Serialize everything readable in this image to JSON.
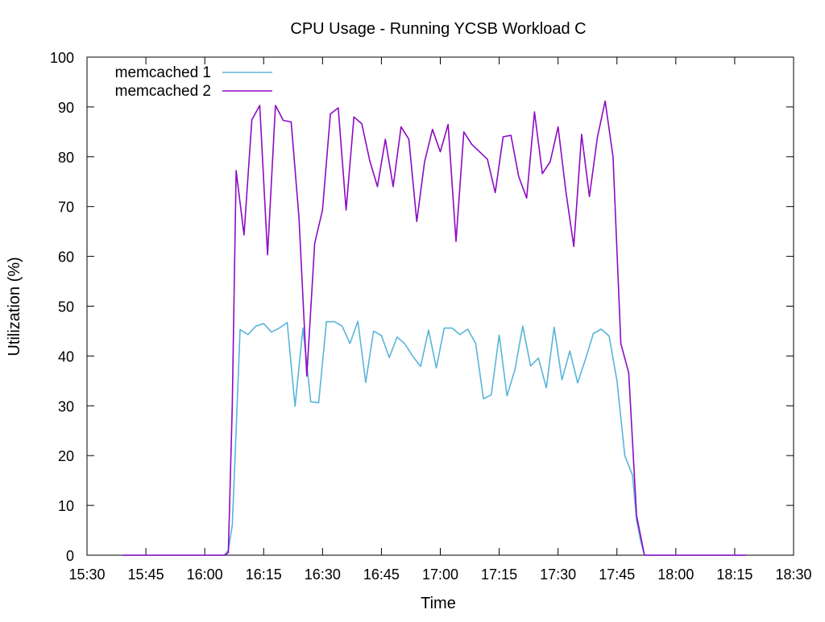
{
  "chart_data": {
    "type": "line",
    "title": "CPU Usage - Running YCSB Workload C",
    "xlabel": "Time",
    "ylabel": "Utilization (%)",
    "xlim": [
      "15:30",
      "18:30"
    ],
    "ylim": [
      0,
      100
    ],
    "x_ticks": [
      "15:30",
      "15:45",
      "16:00",
      "16:15",
      "16:30",
      "16:45",
      "17:00",
      "17:15",
      "17:30",
      "17:45",
      "18:00",
      "18:15",
      "18:30"
    ],
    "y_ticks": [
      0,
      10,
      20,
      30,
      40,
      50,
      60,
      70,
      80,
      90,
      100
    ],
    "grid": false,
    "legend_position": "top-left",
    "series": [
      {
        "name": "memcached 1",
        "color": "#5ab4d9",
        "points": [
          [
            "15:39",
            0
          ],
          [
            "15:45",
            0
          ],
          [
            "15:51",
            0
          ],
          [
            "15:57",
            0
          ],
          [
            "16:03",
            0
          ],
          [
            "16:05",
            0
          ],
          [
            "16:06",
            1
          ],
          [
            "16:07",
            6
          ],
          [
            "16:08",
            25
          ],
          [
            "16:09",
            45.3
          ],
          [
            "16:11",
            44.3
          ],
          [
            "16:13",
            46
          ],
          [
            "16:15",
            46.5
          ],
          [
            "16:17",
            44.8
          ],
          [
            "16:19",
            45.6
          ],
          [
            "16:21",
            46.7
          ],
          [
            "16:23",
            29.9
          ],
          [
            "16:25",
            45.6
          ],
          [
            "16:27",
            30.8
          ],
          [
            "16:29",
            30.6
          ],
          [
            "16:31",
            46.9
          ],
          [
            "16:33",
            46.9
          ],
          [
            "16:35",
            46
          ],
          [
            "16:37",
            42.5
          ],
          [
            "16:39",
            47
          ],
          [
            "16:41",
            34.7
          ],
          [
            "16:43",
            45
          ],
          [
            "16:45",
            44.1
          ],
          [
            "16:47",
            39.7
          ],
          [
            "16:49",
            43.8
          ],
          [
            "16:51",
            42.4
          ],
          [
            "16:53",
            39.9
          ],
          [
            "16:55",
            37.9
          ],
          [
            "16:57",
            45.2
          ],
          [
            "16:59",
            37.6
          ],
          [
            "17:01",
            45.6
          ],
          [
            "17:03",
            45.6
          ],
          [
            "17:05",
            44.3
          ],
          [
            "17:07",
            45.4
          ],
          [
            "17:09",
            42.5
          ],
          [
            "17:11",
            31.4
          ],
          [
            "17:13",
            32.2
          ],
          [
            "17:15",
            44.2
          ],
          [
            "17:17",
            32
          ],
          [
            "17:19",
            37.2
          ],
          [
            "17:21",
            46
          ],
          [
            "17:23",
            38
          ],
          [
            "17:25",
            39.6
          ],
          [
            "17:27",
            33.6
          ],
          [
            "17:29",
            45.8
          ],
          [
            "17:31",
            35.2
          ],
          [
            "17:33",
            41
          ],
          [
            "17:35",
            34.6
          ],
          [
            "17:37",
            39.4
          ],
          [
            "17:39",
            44.5
          ],
          [
            "17:41",
            45.4
          ],
          [
            "17:43",
            44
          ],
          [
            "17:45",
            35
          ],
          [
            "17:47",
            20
          ],
          [
            "17:49",
            16
          ],
          [
            "17:50",
            7
          ],
          [
            "17:51",
            3
          ],
          [
            "17:52",
            0
          ],
          [
            "17:54",
            0
          ],
          [
            "18:00",
            0
          ],
          [
            "18:06",
            0
          ],
          [
            "18:12",
            0
          ],
          [
            "18:18",
            0
          ]
        ]
      },
      {
        "name": "memcached 2",
        "color": "#8d0ac4",
        "points": [
          [
            "15:39",
            0
          ],
          [
            "15:45",
            0
          ],
          [
            "15:51",
            0
          ],
          [
            "15:57",
            0
          ],
          [
            "16:03",
            0
          ],
          [
            "16:05",
            0
          ],
          [
            "16:06",
            0.5
          ],
          [
            "16:07",
            30
          ],
          [
            "16:08",
            77.2
          ],
          [
            "16:10",
            64.3
          ],
          [
            "16:12",
            87.4
          ],
          [
            "16:14",
            90.3
          ],
          [
            "16:16",
            60.3
          ],
          [
            "16:18",
            90.3
          ],
          [
            "16:20",
            87.3
          ],
          [
            "16:22",
            87
          ],
          [
            "16:24",
            67.8
          ],
          [
            "16:26",
            36
          ],
          [
            "16:28",
            62.6
          ],
          [
            "16:30",
            69.3
          ],
          [
            "16:32",
            88.6
          ],
          [
            "16:34",
            89.8
          ],
          [
            "16:36",
            69.3
          ],
          [
            "16:38",
            88
          ],
          [
            "16:40",
            86.6
          ],
          [
            "16:42",
            79.3
          ],
          [
            "16:44",
            74
          ],
          [
            "16:46",
            83.5
          ],
          [
            "16:48",
            74
          ],
          [
            "16:50",
            86
          ],
          [
            "16:52",
            83.5
          ],
          [
            "16:54",
            67
          ],
          [
            "16:56",
            79
          ],
          [
            "16:58",
            85.5
          ],
          [
            "17:00",
            81
          ],
          [
            "17:02",
            86.5
          ],
          [
            "17:04",
            63
          ],
          [
            "17:06",
            85
          ],
          [
            "17:08",
            82.5
          ],
          [
            "17:10",
            81
          ],
          [
            "17:12",
            79.5
          ],
          [
            "17:14",
            72.8
          ],
          [
            "17:16",
            84
          ],
          [
            "17:18",
            84.3
          ],
          [
            "17:20",
            76
          ],
          [
            "17:22",
            71.7
          ],
          [
            "17:24",
            89
          ],
          [
            "17:26",
            76.6
          ],
          [
            "17:28",
            79
          ],
          [
            "17:30",
            86
          ],
          [
            "17:32",
            73
          ],
          [
            "17:34",
            62
          ],
          [
            "17:36",
            84.5
          ],
          [
            "17:38",
            72
          ],
          [
            "17:40",
            83.8
          ],
          [
            "17:42",
            91.2
          ],
          [
            "17:44",
            80
          ],
          [
            "17:46",
            42.5
          ],
          [
            "17:48",
            36.6
          ],
          [
            "17:50",
            8
          ],
          [
            "17:51",
            4
          ],
          [
            "17:52",
            0
          ],
          [
            "17:54",
            0
          ],
          [
            "18:00",
            0
          ],
          [
            "18:06",
            0
          ],
          [
            "18:12",
            0
          ],
          [
            "18:18",
            0
          ]
        ]
      }
    ]
  }
}
